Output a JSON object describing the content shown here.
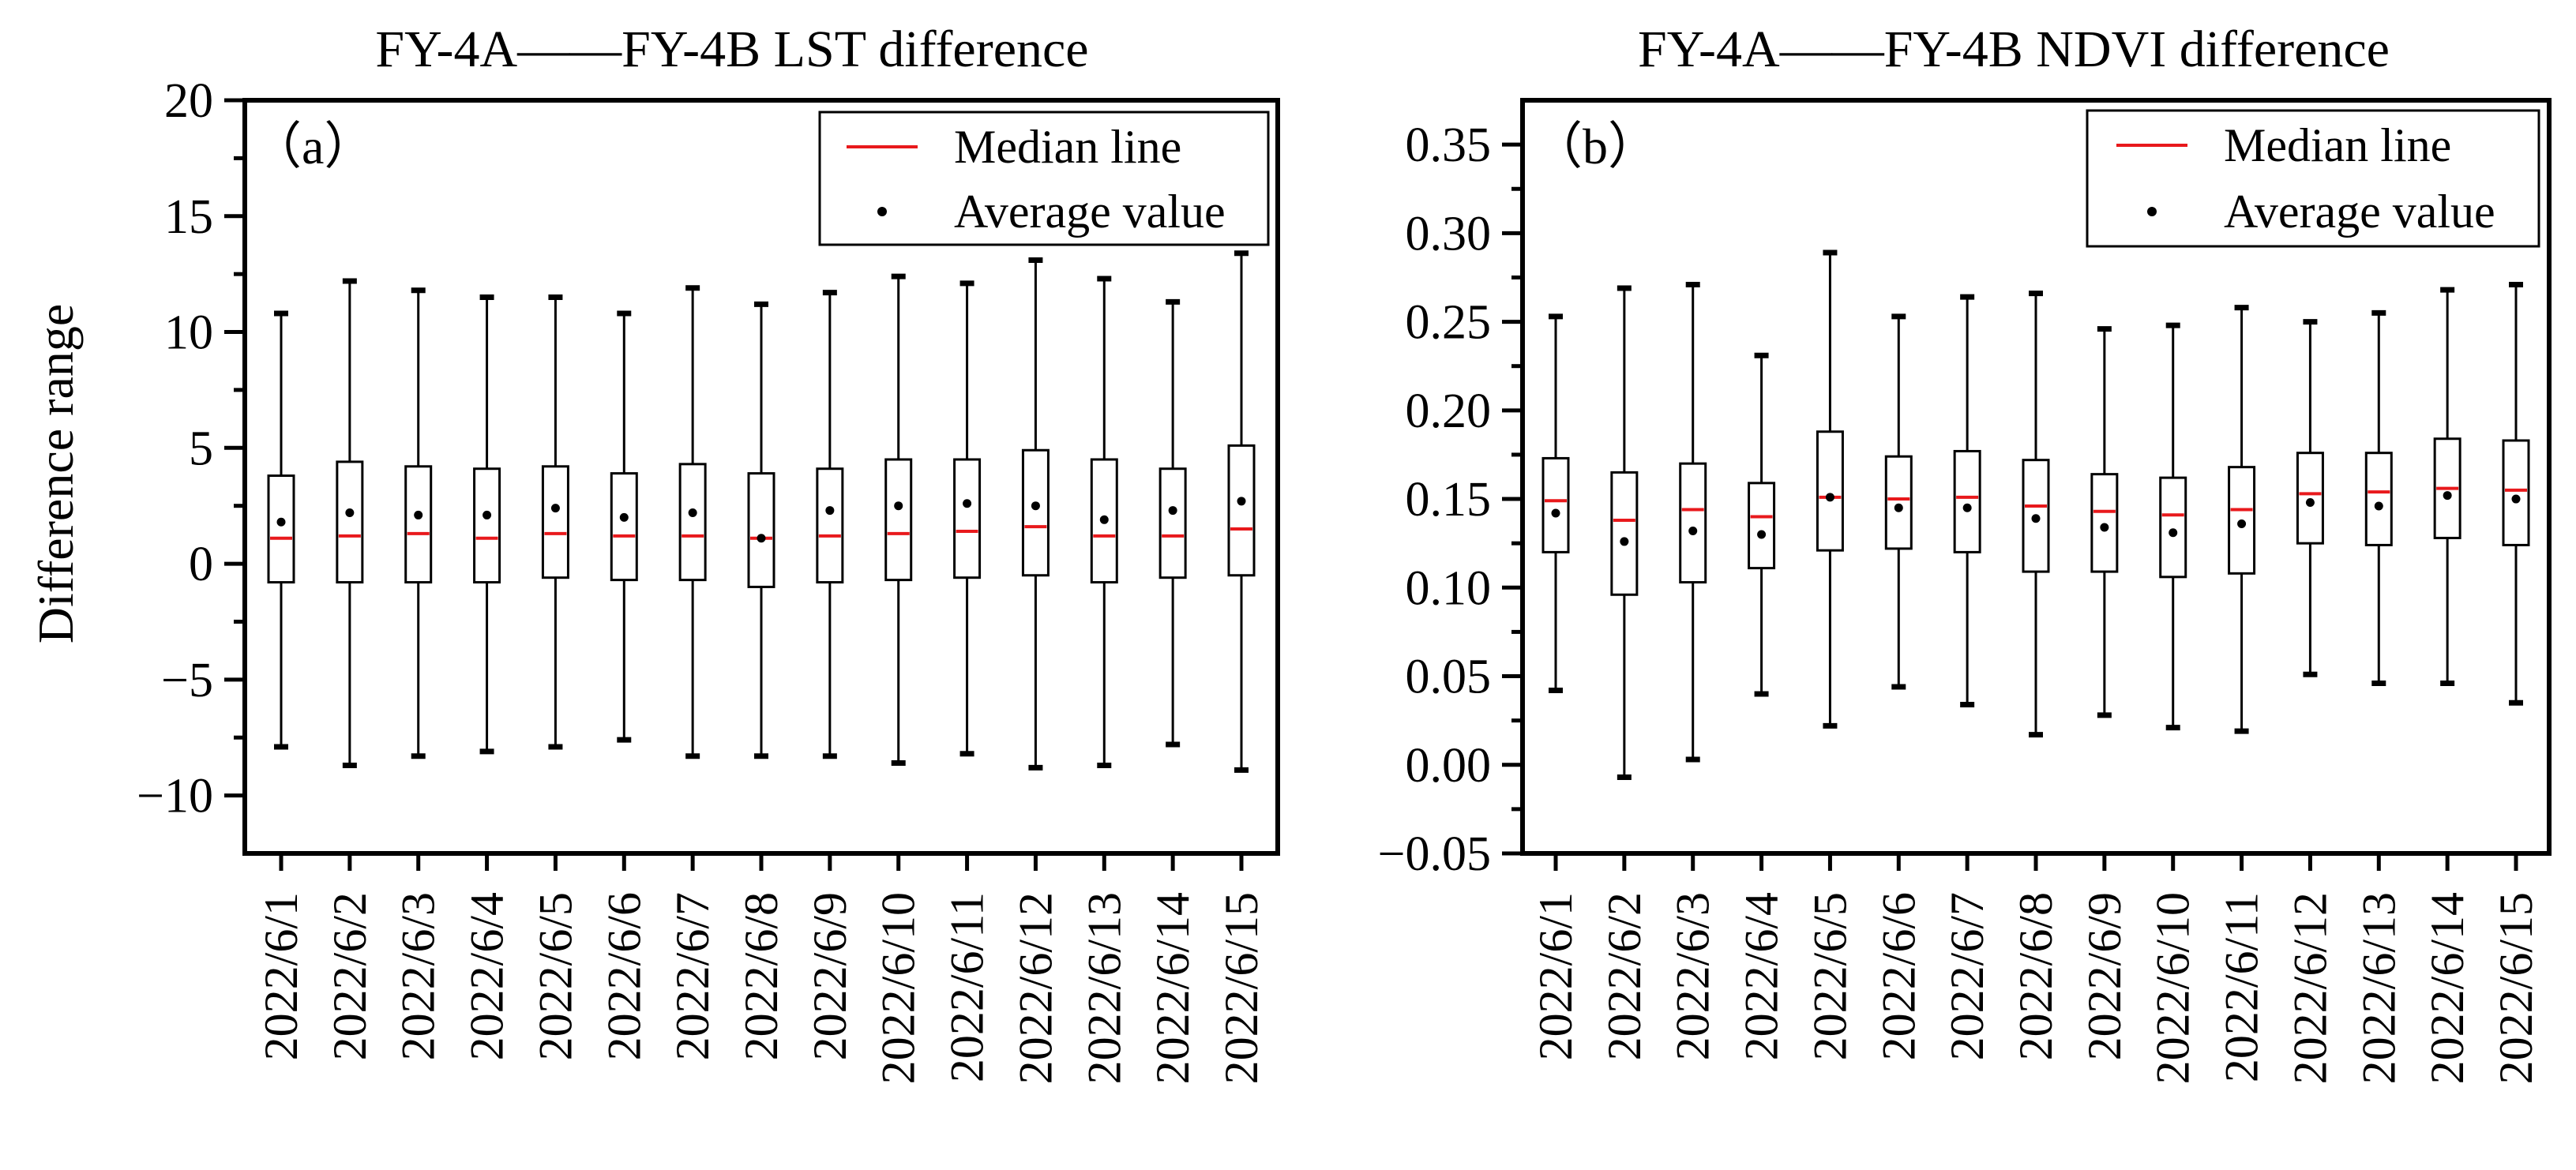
{
  "chart_data": [
    {
      "type": "box",
      "panel_label": "（a）",
      "title": "FY-4A——FY-4B LST difference",
      "ylabel": "Difference range",
      "xlabel": "",
      "ylim": [
        -12.5,
        20
      ],
      "yticks": [
        -10,
        -5,
        0,
        5,
        10,
        15,
        20
      ],
      "ytick_labels": [
        "−10",
        "−5",
        "0",
        "5",
        "10",
        "15",
        "20"
      ],
      "categories": [
        "2022/6/1",
        "2022/6/2",
        "2022/6/3",
        "2022/6/4",
        "2022/6/5",
        "2022/6/6",
        "2022/6/7",
        "2022/6/8",
        "2022/6/9",
        "2022/6/10",
        "2022/6/11",
        "2022/6/12",
        "2022/6/13",
        "2022/6/14",
        "2022/6/15"
      ],
      "whisker_low": [
        -7.9,
        -8.7,
        -8.3,
        -8.1,
        -7.9,
        -7.6,
        -8.3,
        -8.3,
        -8.3,
        -8.6,
        -8.2,
        -8.8,
        -8.7,
        -7.8,
        -8.9
      ],
      "q1": [
        -0.8,
        -0.8,
        -0.8,
        -0.8,
        -0.6,
        -0.7,
        -0.7,
        -1.0,
        -0.8,
        -0.7,
        -0.6,
        -0.5,
        -0.8,
        -0.6,
        -0.5
      ],
      "median": [
        1.1,
        1.2,
        1.3,
        1.1,
        1.3,
        1.2,
        1.2,
        1.1,
        1.2,
        1.3,
        1.4,
        1.6,
        1.2,
        1.2,
        1.5
      ],
      "q3": [
        3.8,
        4.4,
        4.2,
        4.1,
        4.2,
        3.9,
        4.3,
        3.9,
        4.1,
        4.5,
        4.5,
        4.9,
        4.5,
        4.1,
        5.1
      ],
      "whisker_high": [
        10.8,
        12.2,
        11.8,
        11.5,
        11.5,
        10.8,
        11.9,
        11.2,
        11.7,
        12.4,
        12.1,
        13.1,
        12.3,
        11.3,
        13.4
      ],
      "mean": [
        1.8,
        2.2,
        2.1,
        2.1,
        2.4,
        2.0,
        2.2,
        1.1,
        2.3,
        2.5,
        2.6,
        2.5,
        1.9,
        2.3,
        2.7
      ],
      "legend": {
        "median": "Median line",
        "mean": "Average value"
      }
    },
    {
      "type": "box",
      "panel_label": "（b）",
      "title": "FY-4A——FY-4B NDVI difference",
      "ylabel": "",
      "xlabel": "",
      "ylim": [
        -0.05,
        0.375
      ],
      "yticks": [
        -0.05,
        0.0,
        0.05,
        0.1,
        0.15,
        0.2,
        0.25,
        0.3,
        0.35
      ],
      "ytick_labels": [
        "−0.05",
        "0.00",
        "0.05",
        "0.10",
        "0.15",
        "0.20",
        "0.25",
        "0.30",
        "0.35"
      ],
      "categories": [
        "2022/6/1",
        "2022/6/2",
        "2022/6/3",
        "2022/6/4",
        "2022/6/5",
        "2022/6/6",
        "2022/6/7",
        "2022/6/8",
        "2022/6/9",
        "2022/6/10",
        "2022/6/11",
        "2022/6/12",
        "2022/6/13",
        "2022/6/14",
        "2022/6/15"
      ],
      "whisker_low": [
        0.042,
        -0.007,
        0.003,
        0.04,
        0.022,
        0.044,
        0.034,
        0.017,
        0.028,
        0.021,
        0.019,
        0.051,
        0.046,
        0.046,
        0.035
      ],
      "q1": [
        0.12,
        0.096,
        0.103,
        0.111,
        0.121,
        0.122,
        0.12,
        0.109,
        0.109,
        0.106,
        0.108,
        0.125,
        0.124,
        0.128,
        0.124
      ],
      "median": [
        0.149,
        0.138,
        0.144,
        0.14,
        0.151,
        0.15,
        0.151,
        0.146,
        0.143,
        0.141,
        0.144,
        0.153,
        0.154,
        0.156,
        0.155
      ],
      "q3": [
        0.173,
        0.165,
        0.17,
        0.159,
        0.188,
        0.174,
        0.177,
        0.172,
        0.164,
        0.162,
        0.168,
        0.176,
        0.176,
        0.184,
        0.183
      ],
      "whisker_high": [
        0.253,
        0.269,
        0.271,
        0.231,
        0.289,
        0.253,
        0.264,
        0.266,
        0.246,
        0.248,
        0.258,
        0.25,
        0.255,
        0.268,
        0.271
      ],
      "mean": [
        0.142,
        0.126,
        0.132,
        0.13,
        0.151,
        0.145,
        0.145,
        0.139,
        0.134,
        0.131,
        0.136,
        0.148,
        0.146,
        0.152,
        0.15
      ],
      "legend": {
        "median": "Median line",
        "mean": "Average value"
      }
    }
  ],
  "colors": {
    "median": "#e8191c",
    "axis": "#000000",
    "mean": "#000000"
  }
}
